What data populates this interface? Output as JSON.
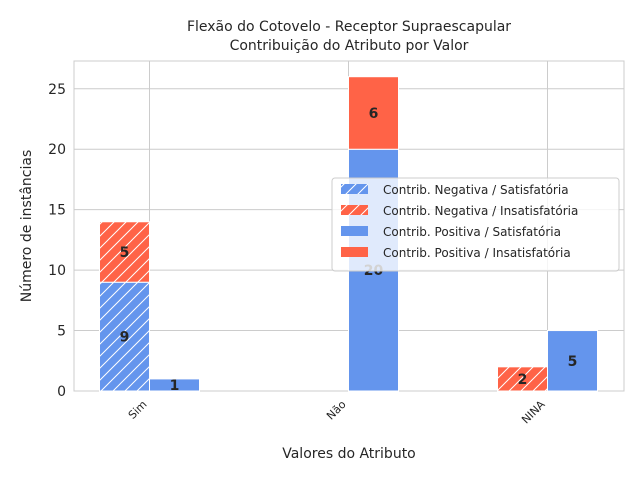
{
  "chart_data": {
    "type": "bar",
    "title": [
      "Flexão do Cotovelo - Receptor Supraescapular",
      "Contribuição do Atributo por Valor"
    ],
    "xlabel": "Valores do Atributo",
    "ylabel": "Número de instâncias",
    "categories": [
      "Sim",
      "Não",
      "NINA"
    ],
    "ylim": [
      0,
      27.3
    ],
    "yticks": [
      0,
      5,
      10,
      15,
      20,
      25
    ],
    "grid": true,
    "legend_position": "center-right",
    "groups": [
      {
        "name": "Contrib. Negativa",
        "stack": [
          {
            "series": "Contrib. Negativa / Satisfatória",
            "values": [
              9,
              0,
              0
            ]
          },
          {
            "series": "Contrib. Negativa / Insatisfatória",
            "values": [
              5,
              0,
              2
            ]
          }
        ]
      },
      {
        "name": "Contrib. Positiva",
        "stack": [
          {
            "series": "Contrib. Positiva / Satisfatória",
            "values": [
              1,
              20,
              5
            ]
          },
          {
            "series": "Contrib. Positiva / Insatisfatória",
            "values": [
              0,
              6,
              0
            ]
          }
        ]
      }
    ],
    "series": [
      {
        "name": "Contrib. Negativa / Satisfatória",
        "color": "#6495ED",
        "hatch": true
      },
      {
        "name": "Contrib. Negativa / Insatisfatória",
        "color": "#FF6347",
        "hatch": true
      },
      {
        "name": "Contrib. Positiva / Satisfatória",
        "color": "#6495ED",
        "hatch": false
      },
      {
        "name": "Contrib. Positiva / Insatisfatória",
        "color": "#FF6347",
        "hatch": false
      }
    ]
  }
}
